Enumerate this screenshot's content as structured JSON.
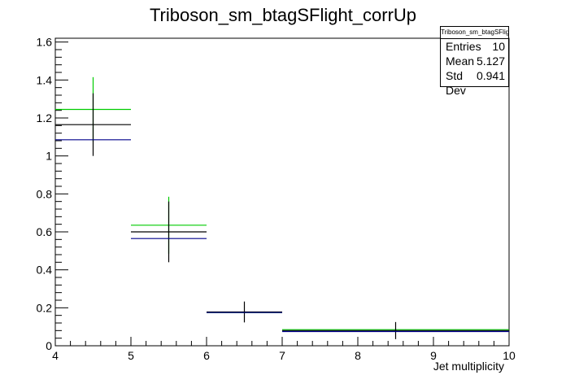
{
  "chart_data": {
    "type": "histogram",
    "title": "Triboson_sm_btagSFlight_corrUp",
    "xlabel": "Jet multiplicity",
    "ylabel": "",
    "xlim": [
      4,
      10
    ],
    "ylim": [
      0,
      1.62
    ],
    "x_ticks": [
      "4",
      "5",
      "6",
      "7",
      "8",
      "9",
      "10"
    ],
    "y_ticks": [
      "0",
      "0.2",
      "0.4",
      "0.6",
      "0.8",
      "1",
      "1.2",
      "1.4",
      "1.6"
    ],
    "bins": [
      [
        4,
        5
      ],
      [
        5,
        6
      ],
      [
        6,
        7
      ],
      [
        7,
        10
      ]
    ],
    "series": [
      {
        "color": "#00cc00",
        "values": [
          1.245,
          0.635,
          0.175,
          0.085
        ],
        "errors": [
          0.17,
          0.15,
          0.0,
          0.0
        ]
      },
      {
        "color": "#000000",
        "values": [
          1.165,
          0.6,
          0.178,
          0.08
        ],
        "errors": [
          0.165,
          0.16,
          0.055,
          0.045
        ]
      },
      {
        "color": "#00008b",
        "values": [
          1.085,
          0.565,
          0.175,
          0.075
        ],
        "errors": [
          0.0,
          0.0,
          0.0,
          0.0
        ]
      }
    ],
    "stats": {
      "title": "Triboson_sm_btagSFlight_corrUp",
      "entries_label": "Entries",
      "entries": "10",
      "mean_label": "Mean",
      "mean": "5.127",
      "std_label": "Std Dev",
      "std": "0.941"
    }
  }
}
